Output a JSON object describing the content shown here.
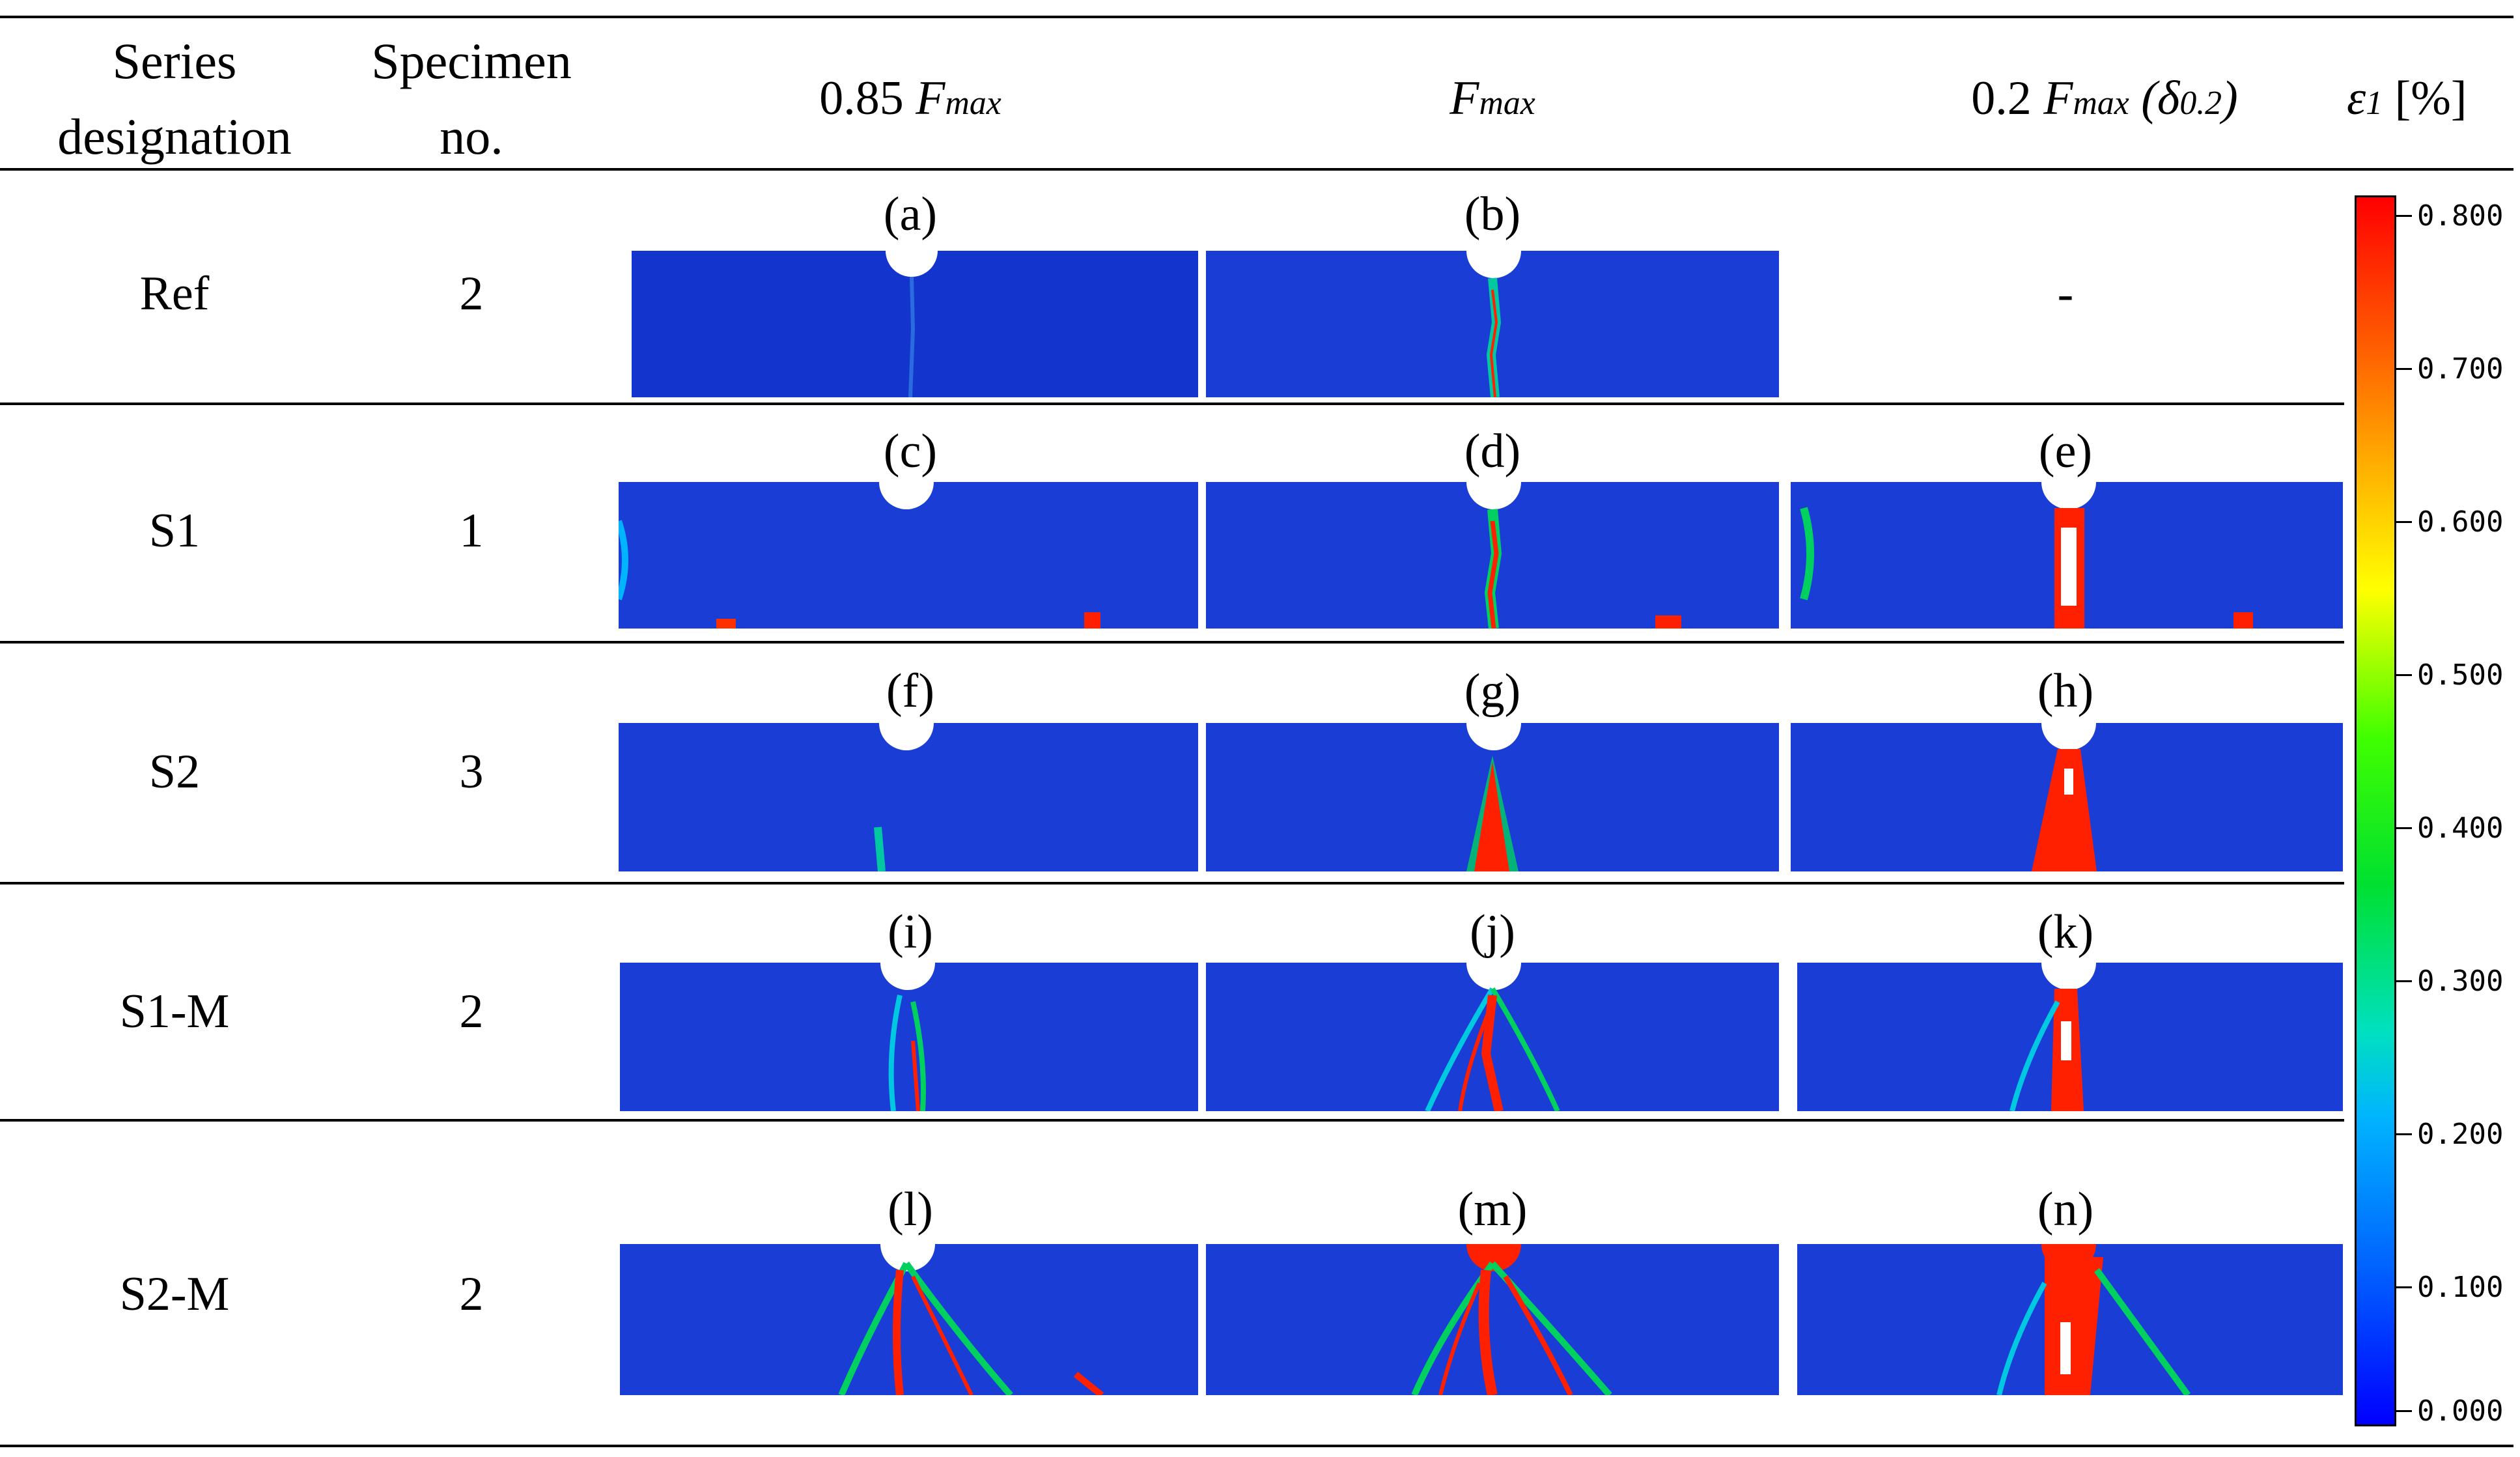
{
  "header": {
    "series": [
      "Series",
      "designation"
    ],
    "specimen": [
      "Specimen",
      "no."
    ],
    "col1": {
      "pre": "0.85 ",
      "F": "F",
      "sub": "max",
      "post": ""
    },
    "col2": {
      "F": "F",
      "sub": "max"
    },
    "col3": {
      "pre": "0.2 ",
      "F": "F",
      "sub": "max",
      "paren_open": " (δ",
      "paren_sub": "0.2",
      "paren_close": ")"
    },
    "strain": {
      "sym": "ε",
      "sub": "1",
      "unit": " [%]"
    }
  },
  "rows": [
    {
      "series": "Ref",
      "specimen": "2",
      "labels": [
        "(a)",
        "(b)"
      ],
      "dash": "-"
    },
    {
      "series": "S1",
      "specimen": "1",
      "labels": [
        "(c)",
        "(d)",
        "(e)"
      ]
    },
    {
      "series": "S2",
      "specimen": "3",
      "labels": [
        "(f)",
        "(g)",
        "(h)"
      ]
    },
    {
      "series": "S1-M",
      "specimen": "2",
      "labels": [
        "(i)",
        "(j)",
        "(k)"
      ]
    },
    {
      "series": "S2-M",
      "specimen": "2",
      "labels": [
        "(l)",
        "(m)",
        "(n)"
      ]
    }
  ],
  "colorbar": {
    "ticks": [
      "0.800",
      "0.700",
      "0.600",
      "0.500",
      "0.400",
      "0.300",
      "0.200",
      "0.100",
      "0.000"
    ],
    "colors": {
      "low": "#0000ff",
      "mid": "#00e030",
      "high": "#ff0000"
    }
  }
}
